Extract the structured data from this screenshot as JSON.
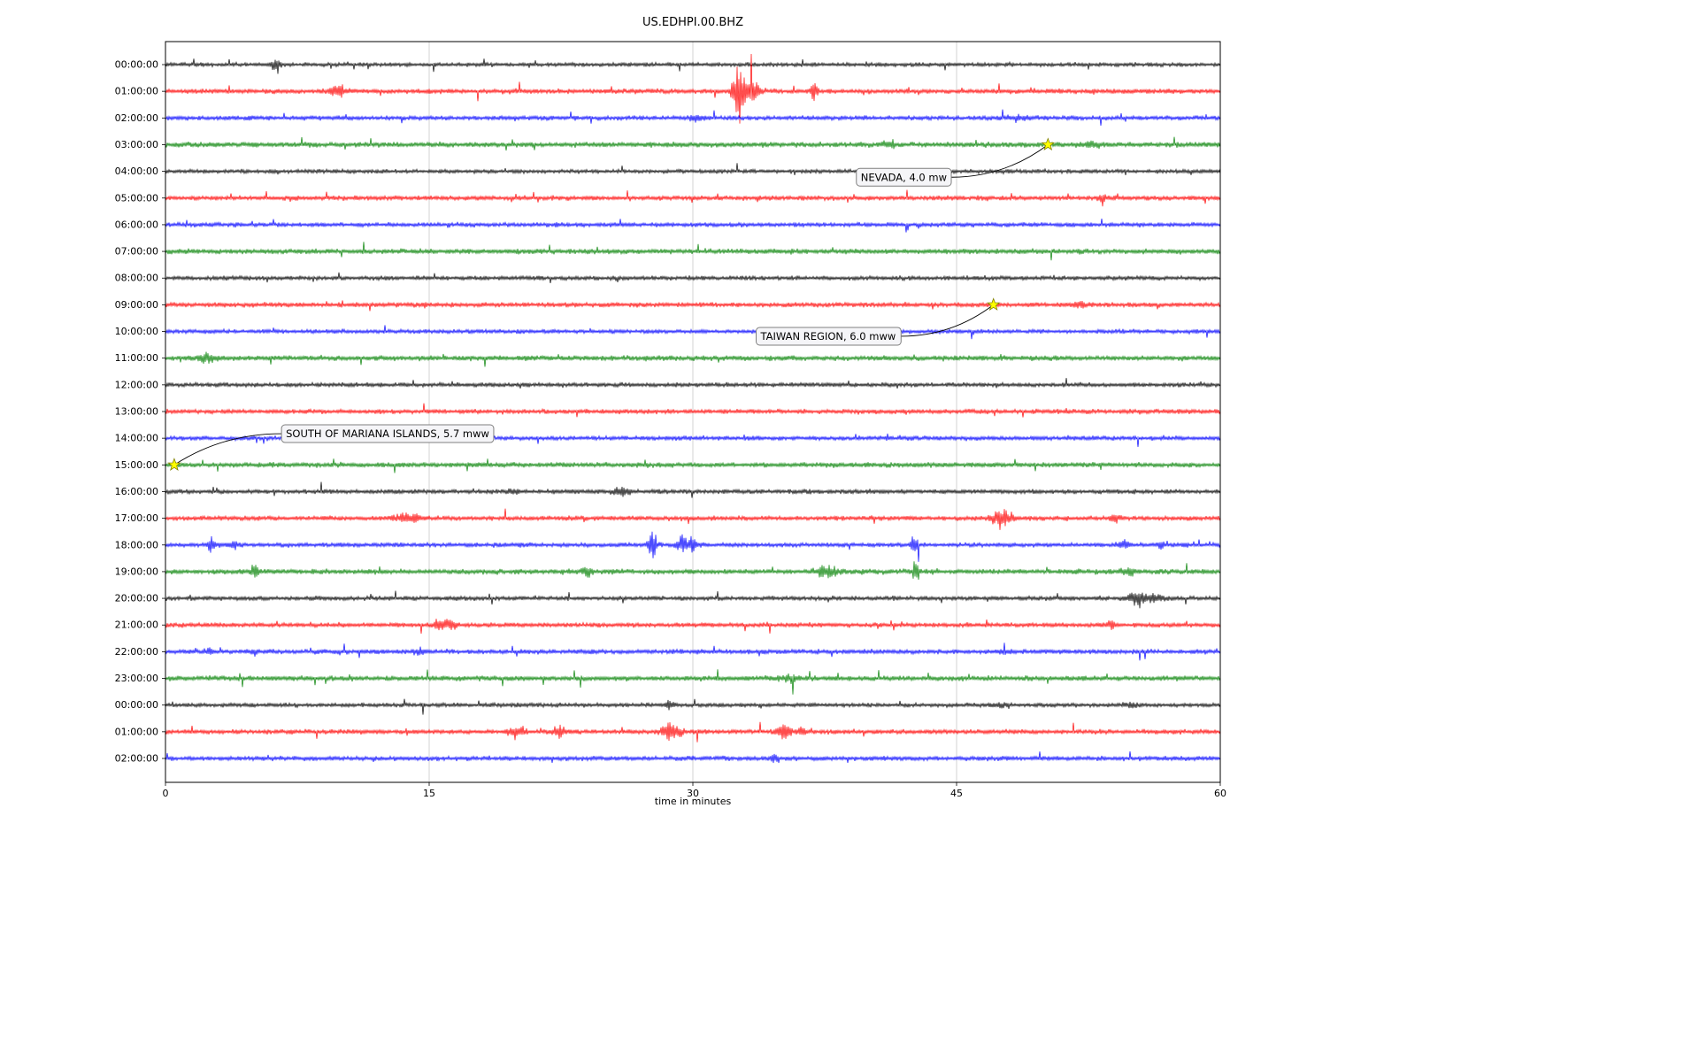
{
  "chart_data": {
    "type": "line",
    "subtype": "helicorder-dayplot",
    "title": "US.EDHPI.00.BHZ",
    "xlabel": "time in minutes",
    "xlim": [
      0,
      60
    ],
    "x_ticks": [
      0,
      15,
      30,
      45,
      60
    ],
    "grid": "vertical-only",
    "grid_color": "#c8c8c8",
    "axis_color": "#000000",
    "background_color": "#ffffff",
    "trace_color_cycle": [
      "#000000",
      "#ff0000",
      "#0000ff",
      "#008000"
    ],
    "marker": {
      "shape": "star",
      "fill": "#ffff00",
      "edge": "#808000"
    },
    "annotation_box": {
      "fill": "#f5f5f8",
      "edge": "#7f7f7f"
    },
    "rows": [
      {
        "label": "00:00:00",
        "color": "#000000",
        "amp": 2.4,
        "bursts": [
          [
            6.3,
            0.25,
            5
          ]
        ]
      },
      {
        "label": "01:00:00",
        "color": "#ff0000",
        "amp": 2.8,
        "bursts": [
          [
            9.8,
            0.8,
            3
          ],
          [
            32.6,
            0.5,
            11
          ],
          [
            33.4,
            0.6,
            5
          ],
          [
            36.9,
            0.25,
            4
          ]
        ]
      },
      {
        "label": "02:00:00",
        "color": "#0000ff",
        "amp": 2.6,
        "bursts": [
          [
            30.3,
            0.8,
            2.2
          ],
          [
            48.5,
            1.5,
            1.6
          ]
        ]
      },
      {
        "label": "03:00:00",
        "color": "#008000",
        "amp": 3.0,
        "bursts": [
          [
            41.2,
            0.5,
            2.2
          ],
          [
            52.5,
            1.2,
            1.8
          ]
        ]
      },
      {
        "label": "04:00:00",
        "color": "#000000",
        "amp": 2.4,
        "bursts": []
      },
      {
        "label": "05:00:00",
        "color": "#ff0000",
        "amp": 2.7,
        "bursts": [
          [
            53.3,
            0.3,
            2.2
          ]
        ]
      },
      {
        "label": "06:00:00",
        "color": "#0000ff",
        "amp": 2.6,
        "bursts": []
      },
      {
        "label": "07:00:00",
        "color": "#008000",
        "amp": 3.0,
        "bursts": []
      },
      {
        "label": "08:00:00",
        "color": "#000000",
        "amp": 2.5,
        "bursts": []
      },
      {
        "label": "09:00:00",
        "color": "#ff0000",
        "amp": 2.7,
        "bursts": [
          [
            52.0,
            0.5,
            2.0
          ]
        ]
      },
      {
        "label": "10:00:00",
        "color": "#0000ff",
        "amp": 2.5,
        "bursts": []
      },
      {
        "label": "11:00:00",
        "color": "#008000",
        "amp": 3.0,
        "bursts": [
          [
            2.4,
            0.8,
            2.5
          ]
        ]
      },
      {
        "label": "12:00:00",
        "color": "#000000",
        "amp": 2.5,
        "bursts": []
      },
      {
        "label": "13:00:00",
        "color": "#ff0000",
        "amp": 2.7,
        "bursts": []
      },
      {
        "label": "14:00:00",
        "color": "#0000ff",
        "amp": 2.6,
        "bursts": []
      },
      {
        "label": "15:00:00",
        "color": "#008000",
        "amp": 2.9,
        "bursts": []
      },
      {
        "label": "16:00:00",
        "color": "#000000",
        "amp": 2.6,
        "bursts": [
          [
            19.8,
            0.5,
            2.2
          ],
          [
            25.9,
            0.8,
            2.2
          ]
        ]
      },
      {
        "label": "17:00:00",
        "color": "#ff0000",
        "amp": 2.7,
        "bursts": [
          [
            13.8,
            1.2,
            2.5
          ],
          [
            47.6,
            0.8,
            4.5
          ],
          [
            54.0,
            0.4,
            2.2
          ]
        ]
      },
      {
        "label": "18:00:00",
        "color": "#0000ff",
        "amp": 2.6,
        "bursts": [
          [
            2.6,
            0.25,
            4
          ],
          [
            3.9,
            0.25,
            2.5
          ],
          [
            27.7,
            0.3,
            7
          ],
          [
            29.4,
            0.4,
            4.5
          ],
          [
            30.0,
            0.3,
            3.5
          ],
          [
            42.6,
            0.25,
            5
          ],
          [
            54.5,
            0.5,
            2.5
          ],
          [
            56.6,
            0.3,
            2.5
          ]
        ]
      },
      {
        "label": "19:00:00",
        "color": "#008000",
        "amp": 3.0,
        "bursts": [
          [
            5.1,
            0.25,
            3.5
          ],
          [
            24.0,
            0.3,
            3
          ],
          [
            37.6,
            1.0,
            3
          ],
          [
            42.7,
            0.25,
            4.5
          ],
          [
            54.8,
            0.5,
            2.5
          ]
        ]
      },
      {
        "label": "20:00:00",
        "color": "#000000",
        "amp": 2.6,
        "bursts": [
          [
            55.3,
            0.7,
            4.5
          ],
          [
            56.3,
            0.5,
            3
          ]
        ]
      },
      {
        "label": "21:00:00",
        "color": "#ff0000",
        "amp": 2.7,
        "bursts": [
          [
            15.6,
            0.5,
            3
          ],
          [
            16.3,
            0.5,
            2.5
          ],
          [
            53.8,
            0.4,
            2.5
          ]
        ]
      },
      {
        "label": "22:00:00",
        "color": "#0000ff",
        "amp": 2.7,
        "bursts": [
          [
            2.5,
            0.3,
            2.2
          ],
          [
            5.0,
            0.3,
            2.2
          ],
          [
            14.4,
            0.3,
            2.2
          ],
          [
            48.0,
            0.8,
            1.8
          ]
        ]
      },
      {
        "label": "23:00:00",
        "color": "#008000",
        "amp": 3.0,
        "bursts": [
          [
            35.5,
            1.0,
            2.0
          ]
        ]
      },
      {
        "label": "00:00:00",
        "color": "#000000",
        "amp": 2.5,
        "bursts": [
          [
            28.7,
            0.4,
            2.5
          ],
          [
            47.5,
            0.6,
            1.8
          ],
          [
            55.0,
            0.5,
            1.8
          ]
        ]
      },
      {
        "label": "01:00:00",
        "color": "#ff0000",
        "amp": 2.7,
        "bursts": [
          [
            20.0,
            0.6,
            3.5
          ],
          [
            22.4,
            0.5,
            3.5
          ],
          [
            28.8,
            0.8,
            4.5
          ],
          [
            35.2,
            0.5,
            4.5
          ],
          [
            36.2,
            0.3,
            3
          ]
        ]
      },
      {
        "label": "02:00:00",
        "color": "#0000ff",
        "amp": 2.7,
        "bursts": [
          [
            34.7,
            0.3,
            2.5
          ]
        ]
      }
    ],
    "events": [
      {
        "label": "NEVADA, 4.0 mw",
        "row_label": "03:00:00",
        "row": 3,
        "x_minutes": 50.2,
        "label_x_minutes": 39.3,
        "label_row": 4.22,
        "connector_from": "right"
      },
      {
        "label": "TAIWAN REGION, 6.0 mww",
        "row_label": "09:00:00",
        "row": 9,
        "x_minutes": 47.1,
        "label_x_minutes": 33.6,
        "label_row": 10.18,
        "connector_from": "right"
      },
      {
        "label": "SOUTH OF MARIANA ISLANDS, 5.7 mww",
        "row_label": "15:00:00",
        "row": 15,
        "x_minutes": 0.5,
        "label_x_minutes": 6.6,
        "label_row": 13.83,
        "connector_from": "left"
      }
    ]
  }
}
